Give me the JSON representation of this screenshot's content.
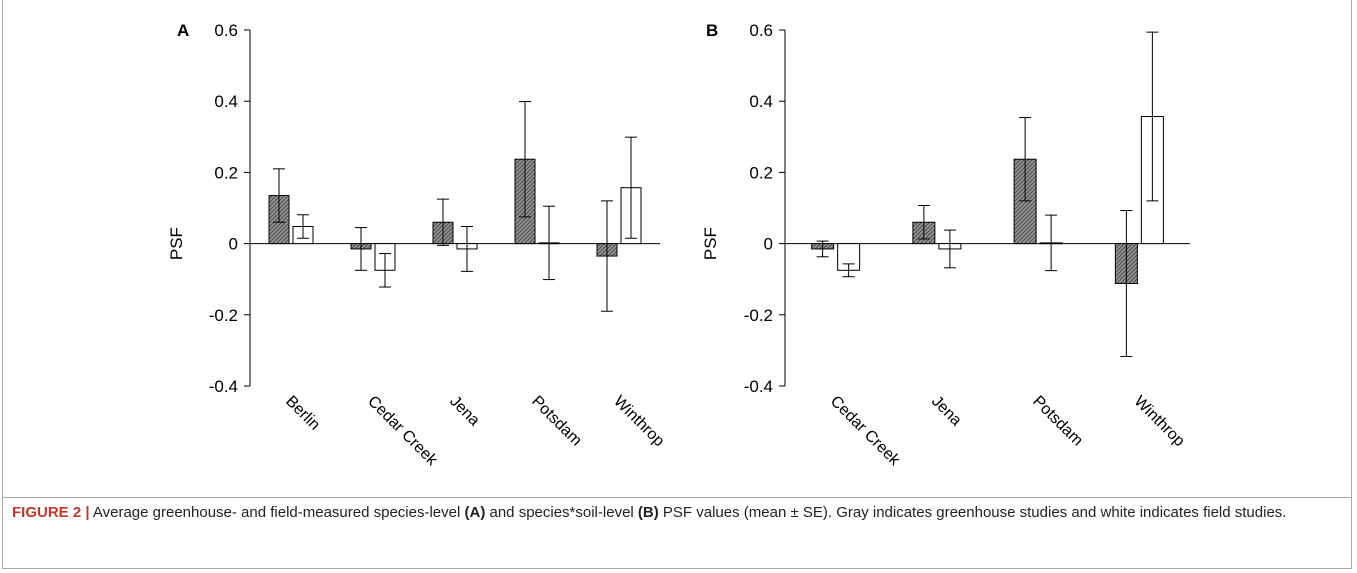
{
  "chart_data": [
    {
      "type": "bar",
      "panel_label": "A",
      "ylabel": "PSF",
      "ylim": [
        -0.4,
        0.6
      ],
      "yticks": [
        "0.6",
        "0.4",
        "0.2",
        "0",
        "-0.2",
        "-0.4"
      ],
      "ytick_values": [
        0.6,
        0.4,
        0.2,
        0,
        -0.2,
        -0.4
      ],
      "categories": [
        "Berlin",
        "Cedar Creek",
        "Jena",
        "Potsdam",
        "Winthrop"
      ],
      "series": [
        {
          "values": [
            0.135,
            -0.015,
            0.06,
            0.237,
            -0.035
          ],
          "error": [
            0.075,
            0.06,
            0.065,
            0.162,
            0.155
          ],
          "color": "#8a8a8a"
        },
        {
          "values": [
            0.048,
            -0.075,
            -0.015,
            0.002,
            0.157
          ],
          "error": [
            0.033,
            0.047,
            0.063,
            0.103,
            0.142
          ],
          "color": "#ffffff"
        }
      ]
    },
    {
      "type": "bar",
      "panel_label": "B",
      "ylabel": "PSF",
      "ylim": [
        -0.4,
        0.6
      ],
      "yticks": [
        "0.6",
        "0.4",
        "0.2",
        "0",
        "-0.2",
        "-0.4"
      ],
      "ytick_values": [
        0.6,
        0.4,
        0.2,
        0,
        -0.2,
        -0.4
      ],
      "categories": [
        "Cedar Creek",
        "Jena",
        "Potsdam",
        "Winthrop"
      ],
      "series": [
        {
          "values": [
            -0.015,
            0.06,
            0.237,
            -0.112
          ],
          "error": [
            0.022,
            0.047,
            0.117,
            0.205
          ],
          "color": "#8a8a8a"
        },
        {
          "values": [
            -0.075,
            -0.015,
            0.002,
            0.357
          ],
          "error": [
            0.018,
            0.053,
            0.078,
            0.237
          ],
          "color": "#ffffff"
        }
      ]
    }
  ],
  "caption": {
    "figure_label": "FIGURE 2 |",
    "text_1": " Average greenhouse- and field-measured species-level ",
    "bold_a": "(A)",
    "text_2": " and species*soil-level ",
    "bold_b": "(B)",
    "text_3": " PSF values (mean ± SE). Gray indicates greenhouse studies and white indicates field studies."
  }
}
